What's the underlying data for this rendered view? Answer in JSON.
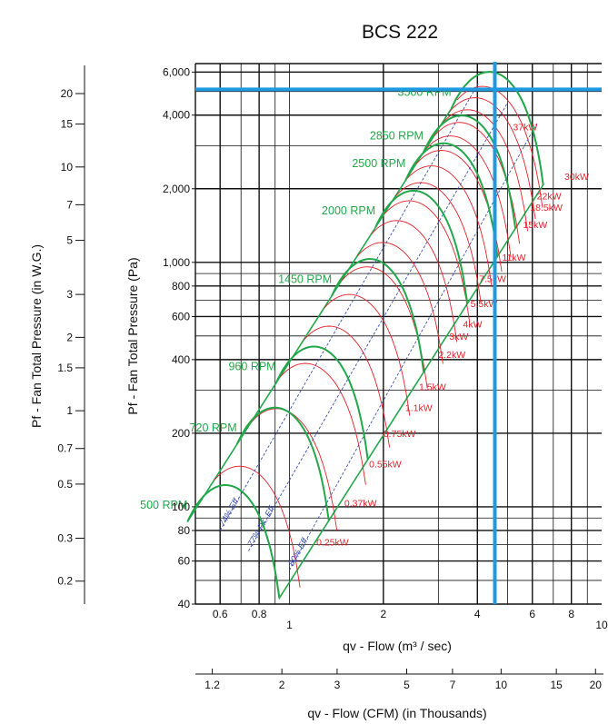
{
  "chart_data": {
    "type": "line",
    "title": "BCS 222",
    "xlabel": "qv - Flow (m³ / sec)",
    "xlabel2": "qv - Flow (CFM) (in Thousands)",
    "ylabel": "Pf - Fan Total Pressure (Pa)",
    "ylabel2": "Pf - Fan Total Pressure (in W.G.)",
    "x_scale": "log",
    "y_scale": "log",
    "xlim": [
      0.5,
      10
    ],
    "ylim": [
      40,
      6500
    ],
    "x_ticks": [
      {
        "v": 0.6,
        "label": "0.6"
      },
      {
        "v": 0.8,
        "label": "0.8"
      },
      {
        "v": 1,
        "label": "1"
      },
      {
        "v": 2,
        "label": "2"
      },
      {
        "v": 4,
        "label": "4"
      },
      {
        "v": 6,
        "label": "6"
      },
      {
        "v": 8,
        "label": "8"
      },
      {
        "v": 10,
        "label": "10"
      }
    ],
    "y_ticks": [
      {
        "v": 40,
        "label": "40"
      },
      {
        "v": 60,
        "label": "60"
      },
      {
        "v": 80,
        "label": "80"
      },
      {
        "v": 100,
        "label": "100"
      },
      {
        "v": 200,
        "label": "200"
      },
      {
        "v": 400,
        "label": "400"
      },
      {
        "v": 600,
        "label": "600"
      },
      {
        "v": 800,
        "label": "800"
      },
      {
        "v": 1000,
        "label": "1,000"
      },
      {
        "v": 2000,
        "label": "2,000"
      },
      {
        "v": 4000,
        "label": "4,000"
      },
      {
        "v": 6000,
        "label": "6,000"
      }
    ],
    "cfm_ticks": [
      {
        "v": 1.2,
        "label": "1.2"
      },
      {
        "v": 2,
        "label": "2"
      },
      {
        "v": 3,
        "label": "3"
      },
      {
        "v": 5,
        "label": "5"
      },
      {
        "v": 7,
        "label": "7"
      },
      {
        "v": 10,
        "label": "10"
      },
      {
        "v": 15,
        "label": "15"
      },
      {
        "v": 20,
        "label": "20"
      }
    ],
    "wg_ticks": [
      {
        "v": 0.2,
        "label": "0.2"
      },
      {
        "v": 0.3,
        "label": "0.3"
      },
      {
        "v": 0.5,
        "label": "0.5"
      },
      {
        "v": 0.7,
        "label": "0.7"
      },
      {
        "v": 1,
        "label": "1"
      },
      {
        "v": 1.5,
        "label": "1.5"
      },
      {
        "v": 2,
        "label": "2"
      },
      {
        "v": 3,
        "label": "3"
      },
      {
        "v": 5,
        "label": "5"
      },
      {
        "v": 7,
        "label": "7"
      },
      {
        "v": 10,
        "label": "10"
      },
      {
        "v": 15,
        "label": "15"
      },
      {
        "v": 20,
        "label": "20"
      }
    ],
    "rpm_curves": [
      {
        "label": "500 RPM",
        "rpm": 500
      },
      {
        "label": "720 RPM",
        "rpm": 720
      },
      {
        "label": "960 RPM",
        "rpm": 960
      },
      {
        "label": "1450 RPM",
        "rpm": 1450
      },
      {
        "label": "2000 RPM",
        "rpm": 2000
      },
      {
        "label": "2500 RPM",
        "rpm": 2500
      },
      {
        "label": "2850 RPM",
        "rpm": 2850
      },
      {
        "label": "3500 RPM",
        "rpm": 3500
      }
    ],
    "power_labels": [
      {
        "label": "0.25kW",
        "q": 1.22,
        "p": 72
      },
      {
        "label": "0.37kW",
        "q": 1.5,
        "p": 104
      },
      {
        "label": "0.55kW",
        "q": 1.8,
        "p": 150
      },
      {
        "label": "0.75kW",
        "q": 2.0,
        "p": 200
      },
      {
        "label": "1.1kW",
        "q": 2.35,
        "p": 255
      },
      {
        "label": "1.5kW",
        "q": 2.6,
        "p": 310
      },
      {
        "label": "2.2kW",
        "q": 3.0,
        "p": 420
      },
      {
        "label": "3kW",
        "q": 3.25,
        "p": 500
      },
      {
        "label": "4kW",
        "q": 3.6,
        "p": 560
      },
      {
        "label": "5.5kW",
        "q": 3.8,
        "p": 680
      },
      {
        "label": "7.5kW",
        "q": 4.05,
        "p": 860
      },
      {
        "label": "11kW",
        "q": 4.8,
        "p": 1050
      },
      {
        "label": "15kW",
        "q": 5.6,
        "p": 1430
      },
      {
        "label": "18.5kW",
        "q": 5.9,
        "p": 1680
      },
      {
        "label": "22kW",
        "q": 6.2,
        "p": 1870
      },
      {
        "label": "30kW",
        "q": 7.6,
        "p": 2250
      },
      {
        "label": "37kW",
        "q": 5.2,
        "p": 3580
      }
    ],
    "efficiency_lines": [
      {
        "label": "74% Eff.",
        "q_low": 0.6,
        "p_low": 80,
        "q_high": 4.05,
        "p_high": 5460
      },
      {
        "label": "77% Pk. Eff.",
        "q_low": 0.74,
        "p_low": 66,
        "q_high": 5.0,
        "p_high": 4500
      },
      {
        "label": "80% Eff.",
        "q_low": 1.0,
        "p_low": 55,
        "q_high": 6.2,
        "p_high": 3700
      }
    ],
    "operating_point": {
      "q": 4.55,
      "p": 5100
    },
    "colors": {
      "rpm": "#22a84a",
      "power": "#e8202a",
      "efficiency": "#3b4fb0",
      "operating": "#1f9ae0",
      "grid": "#111111"
    }
  }
}
